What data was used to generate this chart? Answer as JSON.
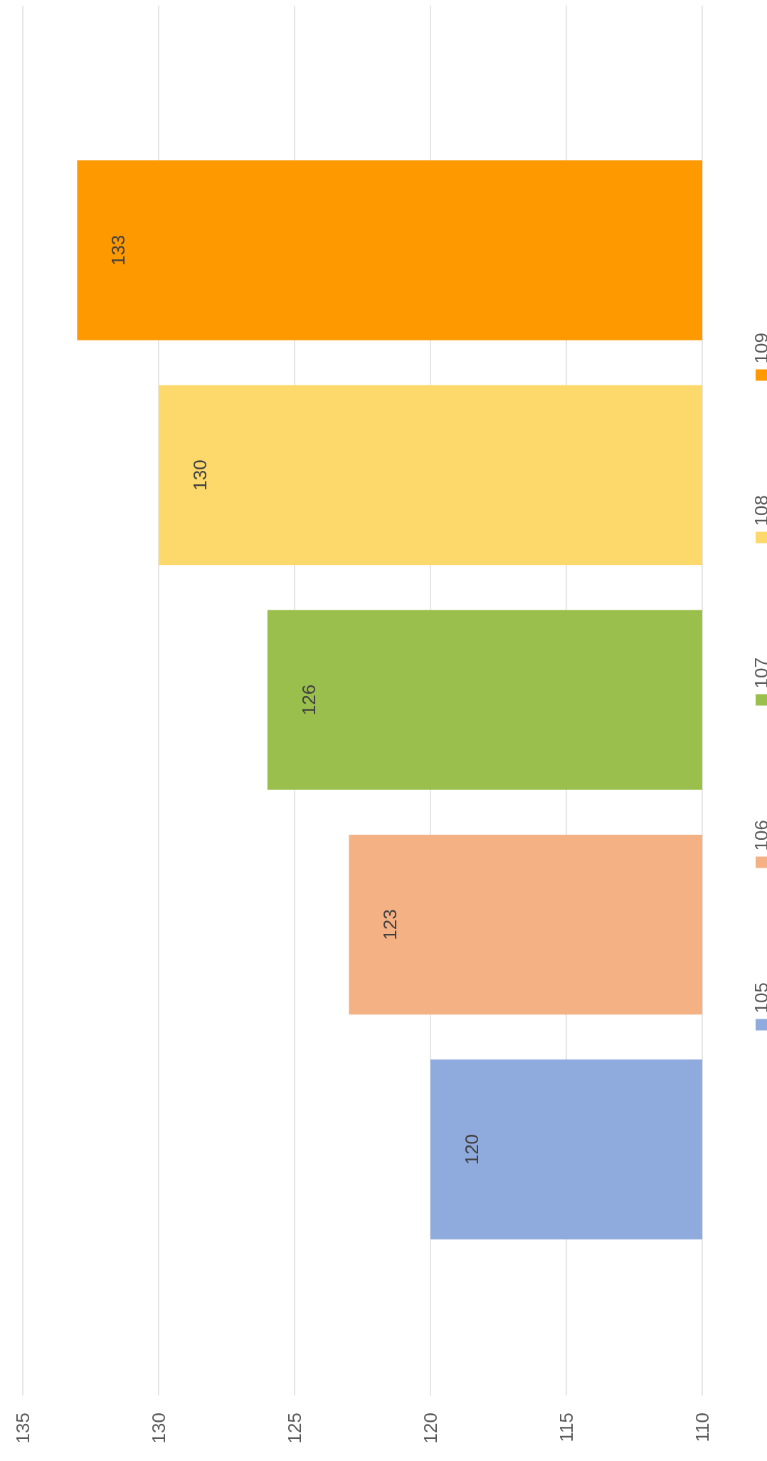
{
  "chart_data": {
    "type": "bar",
    "orientation": "horizontal",
    "categories": [
      null
    ],
    "series": [
      {
        "name": "109",
        "color": "#ff9900",
        "values": [
          133
        ]
      },
      {
        "name": "108",
        "color": "#fdd86b",
        "values": [
          130
        ]
      },
      {
        "name": "107",
        "color": "#9bbf4d",
        "values": [
          126
        ]
      },
      {
        "name": "106",
        "color": "#f4b183",
        "values": [
          123
        ]
      },
      {
        "name": "105",
        "color": "#8faadc",
        "values": [
          120
        ]
      }
    ],
    "xlim": [
      135,
      110
    ],
    "xticks": [
      135,
      130,
      125,
      120,
      115,
      110
    ],
    "grid": true,
    "legend": "right",
    "data_labels": true
  }
}
